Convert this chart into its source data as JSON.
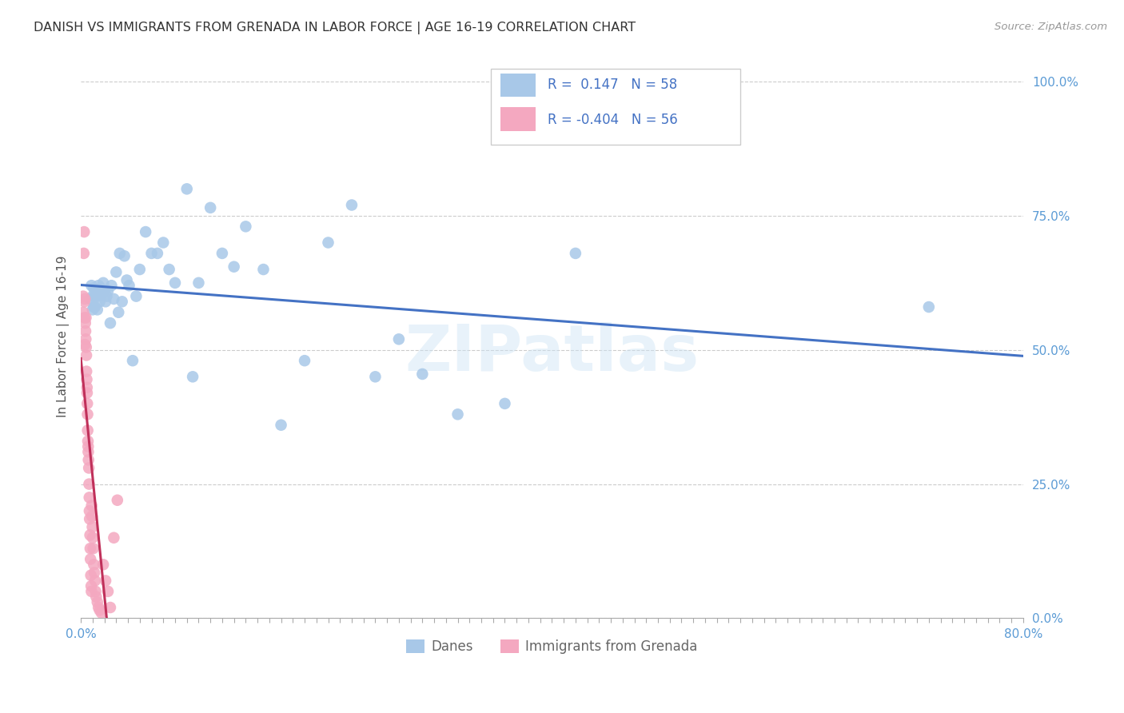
{
  "title": "DANISH VS IMMIGRANTS FROM GRENADA IN LABOR FORCE | AGE 16-19 CORRELATION CHART",
  "source": "Source: ZipAtlas.com",
  "ylabel": "In Labor Force | Age 16-19",
  "xlim": [
    0.0,
    0.8
  ],
  "ylim": [
    0.0,
    1.05
  ],
  "ytick_labels": [
    "0.0%",
    "25.0%",
    "50.0%",
    "75.0%",
    "100.0%"
  ],
  "ytick_vals": [
    0.0,
    0.25,
    0.5,
    0.75,
    1.0
  ],
  "xtick_labels": [
    "0.0%",
    "",
    "",
    "",
    "",
    "",
    "",
    "",
    "",
    "",
    "",
    "",
    "",
    "",
    "",
    "",
    "",
    "",
    "",
    "",
    "",
    "",
    "",
    "",
    "",
    "",
    "",
    "",
    "",
    "",
    "",
    "",
    "",
    "",
    "",
    "",
    "",
    "",
    "",
    "",
    "",
    "",
    "",
    "",
    "",
    "",
    "",
    "",
    "",
    "",
    "",
    "",
    "",
    "",
    "",
    "",
    "",
    "",
    "",
    "",
    "",
    "",
    "",
    "",
    "",
    "",
    "",
    "",
    "",
    "",
    "",
    "",
    "",
    "",
    "",
    "",
    "",
    "",
    "",
    "80.0%"
  ],
  "xtick_vals": [
    0.0,
    0.01,
    0.02,
    0.03,
    0.04,
    0.05,
    0.06,
    0.07,
    0.08,
    0.09,
    0.1,
    0.11,
    0.12,
    0.13,
    0.14,
    0.15,
    0.16,
    0.17,
    0.18,
    0.19,
    0.2,
    0.21,
    0.22,
    0.23,
    0.24,
    0.25,
    0.26,
    0.27,
    0.28,
    0.29,
    0.3,
    0.31,
    0.32,
    0.33,
    0.34,
    0.35,
    0.36,
    0.37,
    0.38,
    0.39,
    0.4,
    0.41,
    0.42,
    0.43,
    0.44,
    0.45,
    0.46,
    0.47,
    0.48,
    0.49,
    0.5,
    0.51,
    0.52,
    0.53,
    0.54,
    0.55,
    0.56,
    0.57,
    0.58,
    0.59,
    0.6,
    0.61,
    0.62,
    0.63,
    0.64,
    0.65,
    0.66,
    0.67,
    0.68,
    0.69,
    0.7,
    0.71,
    0.72,
    0.73,
    0.74,
    0.75,
    0.76,
    0.77,
    0.78,
    0.79,
    0.8
  ],
  "danes_color": "#a8c8e8",
  "immigrants_color": "#f4a8c0",
  "danes_line_color": "#4472c4",
  "immigrants_line_color": "#c0305a",
  "danes_R": 0.147,
  "danes_N": 58,
  "immigrants_R": -0.404,
  "immigrants_N": 56,
  "legend_title_danes": "Danes",
  "legend_title_immigrants": "Immigrants from Grenada",
  "watermark": "ZIPatlas",
  "danes_x": [
    0.008,
    0.009,
    0.01,
    0.01,
    0.011,
    0.011,
    0.012,
    0.012,
    0.013,
    0.014,
    0.014,
    0.015,
    0.016,
    0.017,
    0.018,
    0.019,
    0.02,
    0.021,
    0.022,
    0.023,
    0.025,
    0.026,
    0.028,
    0.03,
    0.032,
    0.033,
    0.035,
    0.037,
    0.039,
    0.041,
    0.044,
    0.047,
    0.05,
    0.055,
    0.06,
    0.065,
    0.07,
    0.075,
    0.08,
    0.09,
    0.095,
    0.1,
    0.11,
    0.12,
    0.13,
    0.14,
    0.155,
    0.17,
    0.19,
    0.21,
    0.23,
    0.25,
    0.27,
    0.29,
    0.32,
    0.36,
    0.42,
    0.72
  ],
  "danes_y": [
    0.595,
    0.62,
    0.575,
    0.6,
    0.58,
    0.615,
    0.6,
    0.58,
    0.61,
    0.575,
    0.6,
    0.62,
    0.59,
    0.615,
    0.605,
    0.625,
    0.61,
    0.59,
    0.6,
    0.61,
    0.55,
    0.62,
    0.595,
    0.645,
    0.57,
    0.68,
    0.59,
    0.675,
    0.63,
    0.62,
    0.48,
    0.6,
    0.65,
    0.72,
    0.68,
    0.68,
    0.7,
    0.65,
    0.625,
    0.8,
    0.45,
    0.625,
    0.765,
    0.68,
    0.655,
    0.73,
    0.65,
    0.36,
    0.48,
    0.7,
    0.77,
    0.45,
    0.52,
    0.455,
    0.38,
    0.4,
    0.68,
    0.58
  ],
  "immigrants_x": [
    0.002,
    0.0022,
    0.0025,
    0.0028,
    0.003,
    0.0032,
    0.0035,
    0.0035,
    0.0038,
    0.004,
    0.0042,
    0.0043,
    0.0045,
    0.0047,
    0.0048,
    0.005,
    0.0052,
    0.0053,
    0.0055,
    0.0057,
    0.0058,
    0.006,
    0.0062,
    0.0063,
    0.0065,
    0.0068,
    0.007,
    0.0072,
    0.0073,
    0.0075,
    0.0078,
    0.008,
    0.0082,
    0.0085,
    0.0088,
    0.009,
    0.0092,
    0.0095,
    0.0098,
    0.01,
    0.0105,
    0.011,
    0.0115,
    0.012,
    0.0125,
    0.013,
    0.014,
    0.015,
    0.016,
    0.0175,
    0.019,
    0.021,
    0.023,
    0.025,
    0.028,
    0.031
  ],
  "immigrants_y": [
    0.6,
    0.57,
    0.68,
    0.72,
    0.59,
    0.56,
    0.595,
    0.51,
    0.55,
    0.535,
    0.52,
    0.56,
    0.505,
    0.49,
    0.46,
    0.445,
    0.43,
    0.42,
    0.4,
    0.38,
    0.35,
    0.33,
    0.32,
    0.31,
    0.295,
    0.28,
    0.25,
    0.225,
    0.2,
    0.185,
    0.155,
    0.13,
    0.11,
    0.08,
    0.06,
    0.05,
    0.21,
    0.19,
    0.17,
    0.15,
    0.13,
    0.1,
    0.085,
    0.07,
    0.05,
    0.04,
    0.03,
    0.02,
    0.015,
    0.01,
    0.1,
    0.07,
    0.05,
    0.02,
    0.15,
    0.22
  ]
}
